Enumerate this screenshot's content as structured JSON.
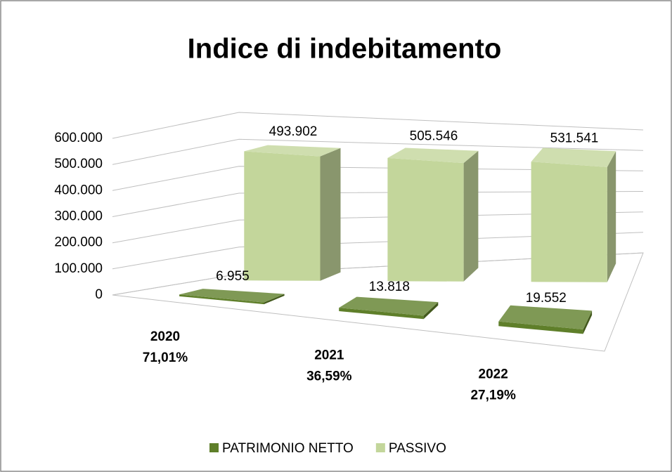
{
  "chart_data": {
    "type": "bar3d",
    "title": "Indice di indebitamento",
    "categories": [
      "2020",
      "2021",
      "2022"
    ],
    "category_notes": [
      "71,01%",
      "36,59%",
      "27,19%"
    ],
    "series": [
      {
        "name": "PATRIMONIO NETTO",
        "color": "#5f7f2a",
        "values": [
          6955,
          13818,
          19552
        ],
        "value_labels": [
          "6.955",
          "13.818",
          "19.552"
        ]
      },
      {
        "name": "PASSIVO",
        "color": "#c3d69b",
        "values": [
          493902,
          505546,
          531541
        ],
        "value_labels": [
          "493.902",
          "505.546",
          "531.541"
        ]
      }
    ],
    "ylim": [
      0,
      600000
    ],
    "yticks": [
      0,
      {
        "value": 100000,
        "label": "100.000"
      },
      {
        "value": 200000,
        "label": "200.000"
      },
      {
        "value": 300000,
        "label": "300.000"
      },
      {
        "value": 400000,
        "label": "400.000"
      },
      {
        "value": 500000,
        "label": "500.000"
      },
      {
        "value": 600000,
        "label": "600.000"
      }
    ],
    "grid": true
  }
}
